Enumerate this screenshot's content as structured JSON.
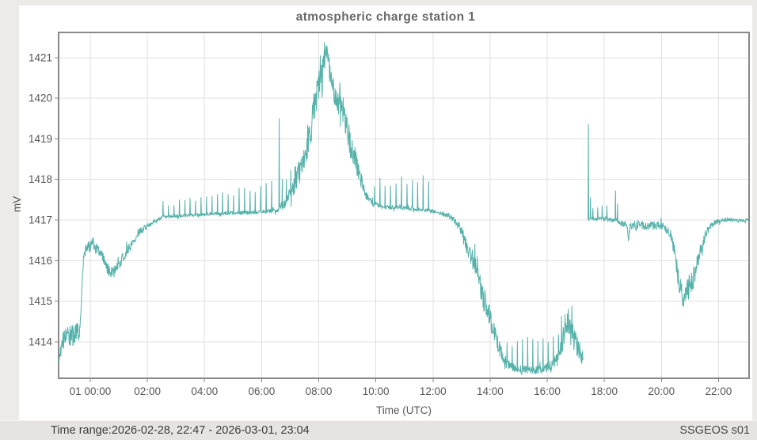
{
  "title": "atmospheric charge station 1",
  "footer": {
    "time_range": "Time range:2026-02-28, 22:47 - 2026-03-01, 23:04",
    "station_id": "SSGEOS s01"
  },
  "chart_data": {
    "type": "line",
    "title": "atmospheric charge station 1",
    "xlabel": "Time (UTC)",
    "ylabel": "mV",
    "legend": "none",
    "grid": true,
    "line_color": "#55b1aa",
    "grid_color": "#e0e0e0",
    "axis_border_color": "#898989",
    "tick_label_color": "#575757",
    "x_range_hours": [
      -1.108,
      23.07
    ],
    "y_range": [
      1413.1,
      1421.62
    ],
    "x_ticks": [
      {
        "h": 0,
        "label": "01 00:00"
      },
      {
        "h": 2,
        "label": "02:00"
      },
      {
        "h": 4,
        "label": "04:00"
      },
      {
        "h": 6,
        "label": "06:00"
      },
      {
        "h": 8,
        "label": "08:00"
      },
      {
        "h": 10,
        "label": "10:00"
      },
      {
        "h": 12,
        "label": "12:00"
      },
      {
        "h": 14,
        "label": "14:00"
      },
      {
        "h": 16,
        "label": "16:00"
      },
      {
        "h": 18,
        "label": "18:00"
      },
      {
        "h": 20,
        "label": "20:00"
      },
      {
        "h": 22,
        "label": "22:00"
      }
    ],
    "y_ticks": [
      1414,
      1415,
      1416,
      1417,
      1418,
      1419,
      1420,
      1421
    ],
    "series_note": "noisy mV signal, one gap between 17.26h and 17.42h; anchors are [hour, mV, noise_amplitude]",
    "segments": [
      {
        "anchors": [
          [
            -1.1,
            1413.5,
            0.08
          ],
          [
            -1.04,
            1413.8,
            0.18
          ],
          [
            -0.95,
            1414.05,
            0.22
          ],
          [
            -0.8,
            1414.1,
            0.26
          ],
          [
            -0.62,
            1414.15,
            0.28
          ],
          [
            -0.45,
            1414.2,
            0.26
          ],
          [
            -0.36,
            1414.35,
            0.22
          ],
          [
            -0.3,
            1415.1,
            0.18
          ],
          [
            -0.24,
            1416.0,
            0.15
          ],
          [
            -0.18,
            1416.3,
            0.13
          ],
          [
            0.0,
            1416.35,
            0.14
          ],
          [
            0.2,
            1416.3,
            0.14
          ],
          [
            0.4,
            1416.2,
            0.13
          ],
          [
            0.55,
            1415.85,
            0.13
          ],
          [
            0.7,
            1415.72,
            0.14
          ],
          [
            0.9,
            1415.75,
            0.15
          ],
          [
            1.05,
            1415.95,
            0.14
          ],
          [
            1.25,
            1416.2,
            0.12
          ],
          [
            1.5,
            1416.5,
            0.11
          ],
          [
            1.75,
            1416.75,
            0.1
          ],
          [
            1.95,
            1416.8,
            0.08
          ],
          [
            2.1,
            1416.9,
            0.06
          ],
          [
            2.3,
            1417.0,
            0.05
          ],
          [
            2.6,
            1417.08,
            0.04
          ],
          [
            3.5,
            1417.12,
            0.04
          ],
          [
            4.5,
            1417.16,
            0.04
          ],
          [
            5.5,
            1417.18,
            0.045
          ],
          [
            6.3,
            1417.22,
            0.05
          ],
          [
            6.6,
            1417.28,
            0.09
          ],
          [
            6.8,
            1417.42,
            0.14
          ],
          [
            7.0,
            1417.62,
            0.2
          ],
          [
            7.2,
            1417.95,
            0.28
          ],
          [
            7.4,
            1418.35,
            0.35
          ],
          [
            7.6,
            1418.9,
            0.4
          ],
          [
            7.78,
            1419.5,
            0.45
          ],
          [
            7.92,
            1420.0,
            0.42
          ],
          [
            8.05,
            1420.45,
            0.35
          ],
          [
            8.18,
            1420.8,
            0.3
          ],
          [
            8.28,
            1421.22,
            0.28
          ],
          [
            8.38,
            1420.7,
            0.3
          ],
          [
            8.5,
            1420.3,
            0.3
          ],
          [
            8.62,
            1419.95,
            0.32
          ],
          [
            8.74,
            1420.0,
            0.42
          ],
          [
            8.84,
            1419.9,
            0.45
          ],
          [
            8.98,
            1419.25,
            0.35
          ],
          [
            9.12,
            1418.75,
            0.3
          ],
          [
            9.28,
            1418.5,
            0.28
          ],
          [
            9.45,
            1418.05,
            0.22
          ],
          [
            9.65,
            1417.65,
            0.15
          ],
          [
            9.85,
            1417.42,
            0.08
          ],
          [
            10.2,
            1417.32,
            0.05
          ],
          [
            11.0,
            1417.3,
            0.05
          ],
          [
            11.6,
            1417.25,
            0.05
          ],
          [
            12.1,
            1417.2,
            0.05
          ],
          [
            12.5,
            1417.12,
            0.06
          ],
          [
            12.75,
            1417.0,
            0.08
          ],
          [
            12.92,
            1416.85,
            0.12
          ],
          [
            13.05,
            1416.6,
            0.16
          ],
          [
            13.25,
            1416.25,
            0.22
          ],
          [
            13.45,
            1415.95,
            0.26
          ],
          [
            13.62,
            1415.5,
            0.3
          ],
          [
            13.78,
            1415.05,
            0.3
          ],
          [
            13.92,
            1414.8,
            0.3
          ],
          [
            14.08,
            1414.4,
            0.28
          ],
          [
            14.22,
            1414.1,
            0.24
          ],
          [
            14.38,
            1413.75,
            0.18
          ],
          [
            14.58,
            1413.45,
            0.12
          ],
          [
            14.85,
            1413.35,
            0.1
          ],
          [
            15.4,
            1413.3,
            0.1
          ],
          [
            15.9,
            1413.32,
            0.1
          ],
          [
            16.15,
            1413.42,
            0.13
          ],
          [
            16.38,
            1413.6,
            0.2
          ],
          [
            16.55,
            1414.05,
            0.25
          ],
          [
            16.7,
            1414.45,
            0.25
          ],
          [
            16.82,
            1414.4,
            0.28
          ],
          [
            16.95,
            1414.05,
            0.3
          ],
          [
            17.1,
            1413.85,
            0.28
          ],
          [
            17.26,
            1413.55,
            0.18
          ]
        ]
      },
      {
        "anchors": [
          [
            17.42,
            1417.0,
            0.03
          ],
          [
            17.55,
            1417.03,
            0.04
          ],
          [
            17.9,
            1417.03,
            0.05
          ],
          [
            18.3,
            1417.0,
            0.05
          ],
          [
            18.6,
            1416.92,
            0.09
          ],
          [
            18.8,
            1416.85,
            0.1
          ],
          [
            18.84,
            1416.5,
            0.06
          ],
          [
            18.9,
            1416.85,
            0.1
          ],
          [
            19.2,
            1416.9,
            0.1
          ],
          [
            19.55,
            1416.85,
            0.11
          ],
          [
            19.95,
            1416.85,
            0.11
          ],
          [
            20.15,
            1416.8,
            0.11
          ],
          [
            20.32,
            1416.65,
            0.13
          ],
          [
            20.45,
            1416.25,
            0.18
          ],
          [
            20.58,
            1415.65,
            0.25
          ],
          [
            20.7,
            1415.15,
            0.28
          ],
          [
            20.82,
            1415.05,
            0.28
          ],
          [
            20.95,
            1415.35,
            0.3
          ],
          [
            21.08,
            1415.5,
            0.3
          ],
          [
            21.22,
            1415.8,
            0.26
          ],
          [
            21.38,
            1416.3,
            0.2
          ],
          [
            21.52,
            1416.6,
            0.13
          ],
          [
            21.7,
            1416.85,
            0.08
          ],
          [
            21.9,
            1416.95,
            0.05
          ],
          [
            22.3,
            1417.02,
            0.05
          ],
          [
            22.65,
            1416.98,
            0.04
          ],
          [
            23.05,
            1417.0,
            0.04
          ]
        ]
      }
    ],
    "spikes": [
      [
        6.62,
        1419.5
      ],
      [
        8.06,
        1421.05
      ],
      [
        17.45,
        1419.35
      ],
      [
        17.52,
        1417.55
      ],
      [
        18.39,
        1417.72
      ],
      [
        18.46,
        1417.4
      ]
    ],
    "spike_trains": [
      {
        "from": 2.55,
        "to": 6.5,
        "interval": 0.19,
        "top_start": 1417.4,
        "top_end": 1417.85,
        "jitter": 0.12
      },
      {
        "from": 6.72,
        "to": 7.38,
        "interval": 0.15,
        "top_start": 1418.0,
        "top_end": 1418.6,
        "jitter": 0.15
      },
      {
        "from": 9.95,
        "to": 11.95,
        "interval": 0.19,
        "top_start": 1417.9,
        "top_end": 1418.05,
        "jitter": 0.12
      },
      {
        "from": 14.6,
        "to": 16.4,
        "interval": 0.18,
        "top_start": 1413.95,
        "top_end": 1414.15,
        "jitter": 0.12
      },
      {
        "from": 16.5,
        "to": 16.95,
        "interval": 0.12,
        "top_start": 1414.6,
        "top_end": 1414.9,
        "jitter": 0.1
      },
      {
        "from": 17.6,
        "to": 18.25,
        "interval": 0.165,
        "top_start": 1417.3,
        "top_end": 1417.3,
        "jitter": 0.05
      }
    ]
  }
}
